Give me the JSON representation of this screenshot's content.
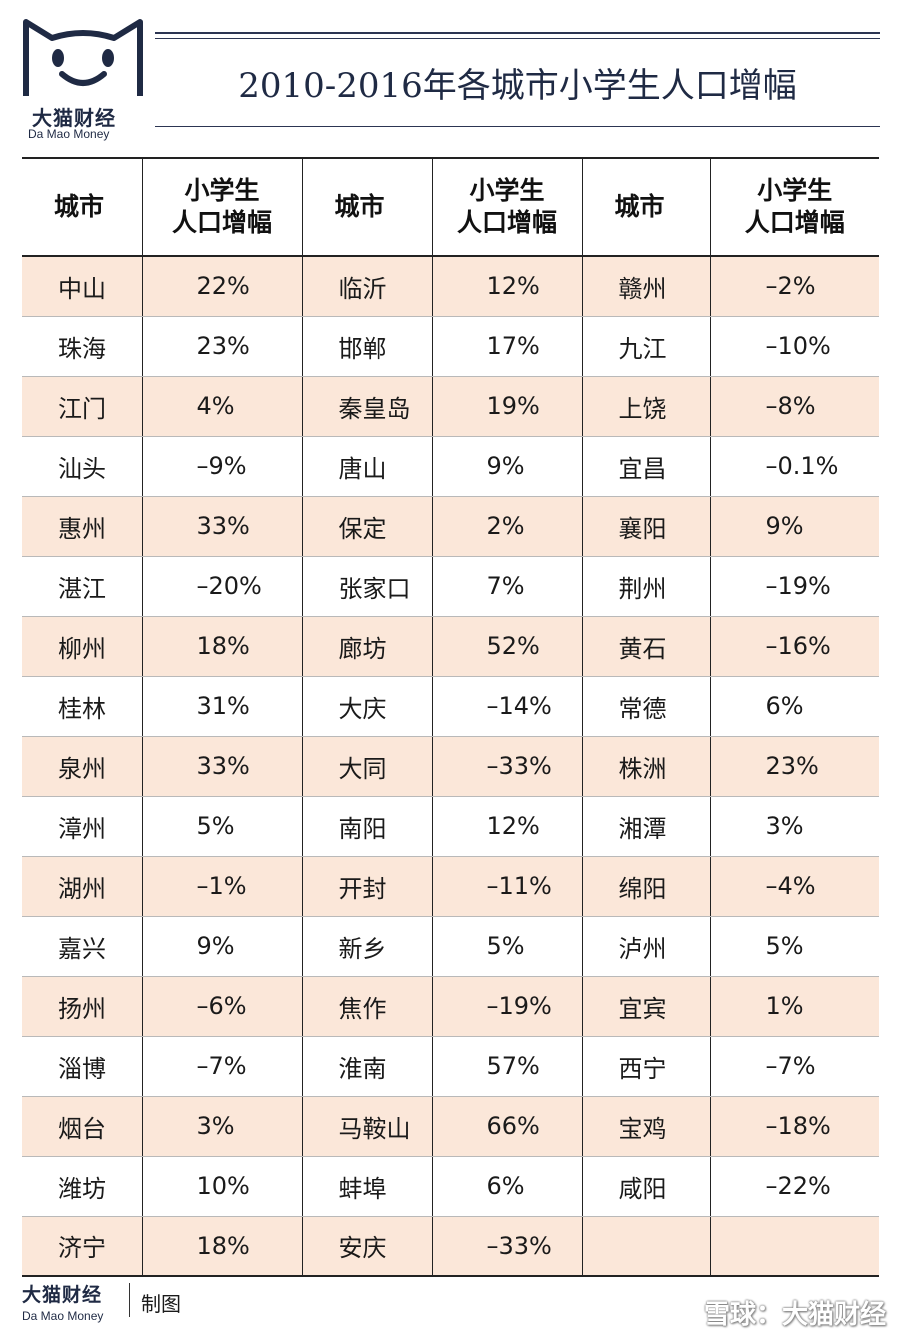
{
  "logo": {
    "name_cn": "大猫财经",
    "name_en": "Da Mao Money"
  },
  "chart_data": {
    "type": "table",
    "title": "2010-2016年各城市小学生人口增幅",
    "headers": [
      "城市",
      "小学生人口增幅",
      "城市",
      "小学生人口增幅",
      "城市",
      "小学生人口增幅"
    ],
    "header_lines": {
      "city": "城市",
      "value_line1": "小学生",
      "value_line2": "人口增幅"
    },
    "rows": [
      {
        "c1": "中山",
        "v1": "22%",
        "c2": "临沂",
        "v2": "12%",
        "c3": "赣州",
        "v3": "–2%"
      },
      {
        "c1": "珠海",
        "v1": "23%",
        "c2": "邯郸",
        "v2": "17%",
        "c3": "九江",
        "v3": "–10%"
      },
      {
        "c1": "江门",
        "v1": "4%",
        "c2": "秦皇岛",
        "v2": "19%",
        "c3": "上饶",
        "v3": "–8%"
      },
      {
        "c1": "汕头",
        "v1": "–9%",
        "c2": "唐山",
        "v2": "9%",
        "c3": "宜昌",
        "v3": "–0.1%"
      },
      {
        "c1": "惠州",
        "v1": "33%",
        "c2": "保定",
        "v2": "2%",
        "c3": "襄阳",
        "v3": "9%"
      },
      {
        "c1": "湛江",
        "v1": "–20%",
        "c2": "张家口",
        "v2": "7%",
        "c3": "荆州",
        "v3": "–19%"
      },
      {
        "c1": "柳州",
        "v1": "18%",
        "c2": "廊坊",
        "v2": "52%",
        "c3": "黄石",
        "v3": "–16%"
      },
      {
        "c1": "桂林",
        "v1": "31%",
        "c2": "大庆",
        "v2": "–14%",
        "c3": "常德",
        "v3": "6%"
      },
      {
        "c1": "泉州",
        "v1": "33%",
        "c2": "大同",
        "v2": "–33%",
        "c3": "株洲",
        "v3": "23%"
      },
      {
        "c1": "漳州",
        "v1": "5%",
        "c2": "南阳",
        "v2": "12%",
        "c3": "湘潭",
        "v3": "3%"
      },
      {
        "c1": "湖州",
        "v1": "–1%",
        "c2": "开封",
        "v2": "–11%",
        "c3": "绵阳",
        "v3": "–4%"
      },
      {
        "c1": "嘉兴",
        "v1": "9%",
        "c2": "新乡",
        "v2": "5%",
        "c3": "泸州",
        "v3": "5%"
      },
      {
        "c1": "扬州",
        "v1": "–6%",
        "c2": "焦作",
        "v2": "–19%",
        "c3": "宜宾",
        "v3": "1%"
      },
      {
        "c1": "淄博",
        "v1": "–7%",
        "c2": "淮南",
        "v2": "57%",
        "c3": "西宁",
        "v3": "–7%"
      },
      {
        "c1": "烟台",
        "v1": "3%",
        "c2": "马鞍山",
        "v2": "66%",
        "c3": "宝鸡",
        "v3": "–18%"
      },
      {
        "c1": "潍坊",
        "v1": "10%",
        "c2": "蚌埠",
        "v2": "6%",
        "c3": "咸阳",
        "v3": "–22%"
      },
      {
        "c1": "济宁",
        "v1": "18%",
        "c2": "安庆",
        "v2": "–33%",
        "c3": "",
        "v3": ""
      }
    ],
    "row_shading": "alternating",
    "shade_color": "#fbe7d9"
  },
  "footer": {
    "brand_cn": "大猫财经",
    "brand_en": "Da Mao Money",
    "credit": "制图"
  },
  "watermark": "雪球：大猫财经",
  "colors": {
    "navy": "#1f2a44",
    "shade": "#fbe7d9"
  }
}
